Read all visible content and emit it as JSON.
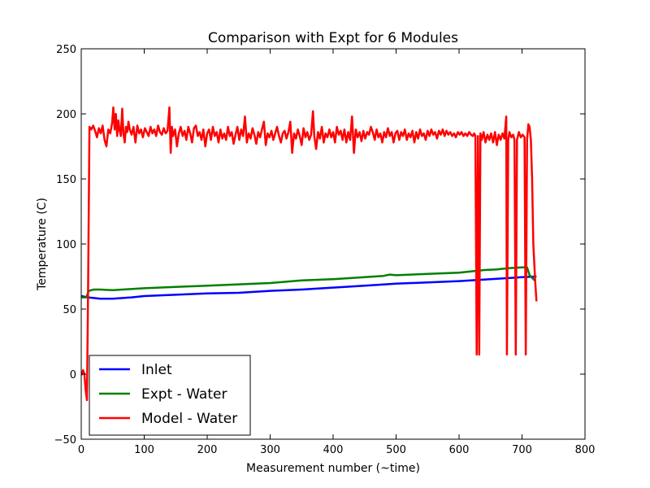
{
  "chart_data": {
    "type": "line",
    "title": "Comparison with Expt for 6 Modules",
    "xlabel": "Measurement number (~time)",
    "ylabel": "Temperature (C)",
    "xlim": [
      0,
      800
    ],
    "ylim": [
      -50,
      250
    ],
    "xticks": [
      0,
      100,
      200,
      300,
      400,
      500,
      600,
      700,
      800
    ],
    "yticks": [
      -50,
      0,
      50,
      100,
      150,
      200,
      250
    ],
    "grid": false,
    "legend_position": "lower-left",
    "series": [
      {
        "name": "Inlet",
        "color": "#0000ff",
        "points": [
          [
            0,
            60
          ],
          [
            10,
            59
          ],
          [
            20,
            58.5
          ],
          [
            30,
            58
          ],
          [
            50,
            58
          ],
          [
            80,
            59
          ],
          [
            100,
            60
          ],
          [
            150,
            61
          ],
          [
            200,
            62
          ],
          [
            250,
            62.5
          ],
          [
            300,
            64
          ],
          [
            350,
            65
          ],
          [
            400,
            66.5
          ],
          [
            450,
            68
          ],
          [
            500,
            69.5
          ],
          [
            550,
            70.5
          ],
          [
            600,
            71.5
          ],
          [
            650,
            73
          ],
          [
            700,
            74.5
          ],
          [
            723,
            75
          ]
        ]
      },
      {
        "name": "Expt - Water",
        "color": "#008000",
        "points": [
          [
            0,
            59
          ],
          [
            8,
            59
          ],
          [
            12,
            64
          ],
          [
            20,
            65
          ],
          [
            30,
            65
          ],
          [
            50,
            64.5
          ],
          [
            100,
            66
          ],
          [
            150,
            67
          ],
          [
            200,
            68
          ],
          [
            250,
            69
          ],
          [
            300,
            70
          ],
          [
            350,
            72
          ],
          [
            400,
            73
          ],
          [
            450,
            74.5
          ],
          [
            480,
            75.5
          ],
          [
            490,
            76.5
          ],
          [
            500,
            76
          ],
          [
            550,
            77
          ],
          [
            600,
            78
          ],
          [
            620,
            79
          ],
          [
            640,
            80
          ],
          [
            660,
            80.5
          ],
          [
            680,
            81.5
          ],
          [
            700,
            82
          ],
          [
            708,
            82
          ],
          [
            712,
            76
          ],
          [
            720,
            72
          ]
        ]
      },
      {
        "name": "Model - Water",
        "color": "#ff0000",
        "points": [
          [
            0,
            -1
          ],
          [
            3,
            3
          ],
          [
            5,
            0
          ],
          [
            7,
            -12
          ],
          [
            9,
            -20
          ],
          [
            11,
            70
          ],
          [
            13,
            190
          ],
          [
            16,
            188
          ],
          [
            19,
            191
          ],
          [
            22,
            187
          ],
          [
            25,
            182
          ],
          [
            28,
            189
          ],
          [
            31,
            185
          ],
          [
            34,
            191
          ],
          [
            37,
            180
          ],
          [
            40,
            175
          ],
          [
            43,
            188
          ],
          [
            46,
            185
          ],
          [
            49,
            193
          ],
          [
            51,
            205
          ],
          [
            53,
            188
          ],
          [
            55,
            200
          ],
          [
            57,
            183
          ],
          [
            59,
            195
          ],
          [
            61,
            187
          ],
          [
            63,
            183
          ],
          [
            65,
            204
          ],
          [
            67,
            185
          ],
          [
            69,
            178
          ],
          [
            71,
            190
          ],
          [
            73,
            186
          ],
          [
            75,
            194
          ],
          [
            77,
            188
          ],
          [
            80,
            184
          ],
          [
            83,
            190
          ],
          [
            86,
            178
          ],
          [
            89,
            191
          ],
          [
            92,
            185
          ],
          [
            95,
            188
          ],
          [
            98,
            182
          ],
          [
            101,
            189
          ],
          [
            104,
            186
          ],
          [
            107,
            183
          ],
          [
            110,
            190
          ],
          [
            113,
            185
          ],
          [
            116,
            188
          ],
          [
            119,
            183
          ],
          [
            122,
            191
          ],
          [
            125,
            186
          ],
          [
            128,
            184
          ],
          [
            131,
            189
          ],
          [
            134,
            185
          ],
          [
            137,
            187
          ],
          [
            140,
            205
          ],
          [
            142,
            170
          ],
          [
            144,
            190
          ],
          [
            146,
            183
          ],
          [
            149,
            188
          ],
          [
            152,
            175
          ],
          [
            155,
            185
          ],
          [
            158,
            190
          ],
          [
            161,
            183
          ],
          [
            164,
            187
          ],
          [
            167,
            180
          ],
          [
            170,
            190
          ],
          [
            173,
            185
          ],
          [
            176,
            178
          ],
          [
            179,
            189
          ],
          [
            182,
            191
          ],
          [
            185,
            183
          ],
          [
            188,
            186
          ],
          [
            191,
            180
          ],
          [
            194,
            188
          ],
          [
            197,
            175
          ],
          [
            200,
            185
          ],
          [
            203,
            188
          ],
          [
            206,
            180
          ],
          [
            209,
            190
          ],
          [
            212,
            183
          ],
          [
            215,
            186
          ],
          [
            218,
            178
          ],
          [
            221,
            188
          ],
          [
            224,
            181
          ],
          [
            227,
            185
          ],
          [
            230,
            180
          ],
          [
            233,
            190
          ],
          [
            236,
            183
          ],
          [
            239,
            186
          ],
          [
            242,
            177
          ],
          [
            245,
            184
          ],
          [
            248,
            190
          ],
          [
            251,
            180
          ],
          [
            254,
            188
          ],
          [
            257,
            183
          ],
          [
            260,
            198
          ],
          [
            263,
            178
          ],
          [
            266,
            185
          ],
          [
            269,
            181
          ],
          [
            272,
            189
          ],
          [
            275,
            184
          ],
          [
            278,
            177
          ],
          [
            281,
            186
          ],
          [
            284,
            182
          ],
          [
            287,
            188
          ],
          [
            290,
            194
          ],
          [
            293,
            176
          ],
          [
            296,
            185
          ],
          [
            299,
            182
          ],
          [
            302,
            187
          ],
          [
            305,
            180
          ],
          [
            308,
            185
          ],
          [
            311,
            190
          ],
          [
            314,
            183
          ],
          [
            317,
            178
          ],
          [
            320,
            185
          ],
          [
            323,
            187
          ],
          [
            326,
            181
          ],
          [
            329,
            186
          ],
          [
            332,
            194
          ],
          [
            335,
            170
          ],
          [
            338,
            185
          ],
          [
            341,
            181
          ],
          [
            344,
            188
          ],
          [
            347,
            183
          ],
          [
            350,
            176
          ],
          [
            353,
            189
          ],
          [
            356,
            182
          ],
          [
            359,
            186
          ],
          [
            362,
            180
          ],
          [
            365,
            184
          ],
          [
            368,
            202
          ],
          [
            370,
            183
          ],
          [
            373,
            173
          ],
          [
            376,
            186
          ],
          [
            379,
            181
          ],
          [
            382,
            190
          ],
          [
            385,
            178
          ],
          [
            388,
            185
          ],
          [
            391,
            182
          ],
          [
            394,
            188
          ],
          [
            397,
            182
          ],
          [
            400,
            186
          ],
          [
            403,
            178
          ],
          [
            406,
            190
          ],
          [
            409,
            184
          ],
          [
            412,
            187
          ],
          [
            415,
            180
          ],
          [
            418,
            188
          ],
          [
            421,
            178
          ],
          [
            424,
            186
          ],
          [
            427,
            180
          ],
          [
            430,
            198
          ],
          [
            433,
            170
          ],
          [
            436,
            188
          ],
          [
            439,
            182
          ],
          [
            442,
            186
          ],
          [
            445,
            179
          ],
          [
            448,
            187
          ],
          [
            451,
            181
          ],
          [
            454,
            186
          ],
          [
            457,
            184
          ],
          [
            460,
            190
          ],
          [
            463,
            186
          ],
          [
            466,
            180
          ],
          [
            469,
            188
          ],
          [
            472,
            182
          ],
          [
            475,
            185
          ],
          [
            478,
            178
          ],
          [
            481,
            186
          ],
          [
            484,
            182
          ],
          [
            487,
            189
          ],
          [
            490,
            183
          ],
          [
            493,
            186
          ],
          [
            496,
            178
          ],
          [
            499,
            185
          ],
          [
            502,
            187
          ],
          [
            505,
            180
          ],
          [
            508,
            186
          ],
          [
            511,
            183
          ],
          [
            514,
            188
          ],
          [
            517,
            180
          ],
          [
            520,
            185
          ],
          [
            523,
            182
          ],
          [
            526,
            187
          ],
          [
            529,
            178
          ],
          [
            532,
            186
          ],
          [
            535,
            181
          ],
          [
            538,
            188
          ],
          [
            541,
            183
          ],
          [
            544,
            185
          ],
          [
            547,
            180
          ],
          [
            550,
            187
          ],
          [
            553,
            183
          ],
          [
            556,
            188
          ],
          [
            559,
            184
          ],
          [
            562,
            186
          ],
          [
            565,
            181
          ],
          [
            568,
            187
          ],
          [
            571,
            184
          ],
          [
            574,
            188
          ],
          [
            577,
            183
          ],
          [
            580,
            187
          ],
          [
            583,
            184
          ],
          [
            586,
            186
          ],
          [
            589,
            183
          ],
          [
            592,
            185
          ],
          [
            595,
            182
          ],
          [
            598,
            186
          ],
          [
            601,
            184
          ],
          [
            604,
            186
          ],
          [
            607,
            183
          ],
          [
            610,
            185
          ],
          [
            613,
            183
          ],
          [
            616,
            186
          ],
          [
            619,
            184
          ],
          [
            622,
            183
          ],
          [
            624,
            185
          ],
          [
            626,
            183
          ],
          [
            628,
            15
          ],
          [
            630,
            183
          ],
          [
            632,
            15
          ],
          [
            634,
            185
          ],
          [
            636,
            180
          ],
          [
            639,
            186
          ],
          [
            642,
            178
          ],
          [
            645,
            184
          ],
          [
            648,
            180
          ],
          [
            651,
            185
          ],
          [
            654,
            178
          ],
          [
            657,
            186
          ],
          [
            660,
            176
          ],
          [
            663,
            184
          ],
          [
            666,
            180
          ],
          [
            669,
            185
          ],
          [
            672,
            181
          ],
          [
            675,
            198
          ],
          [
            676,
            15
          ],
          [
            678,
            180
          ],
          [
            680,
            186
          ],
          [
            683,
            182
          ],
          [
            686,
            184
          ],
          [
            688,
            180
          ],
          [
            690,
            15
          ],
          [
            692,
            180
          ],
          [
            695,
            186
          ],
          [
            698,
            182
          ],
          [
            701,
            184
          ],
          [
            704,
            182
          ],
          [
            706,
            15
          ],
          [
            708,
            180
          ],
          [
            710,
            192
          ],
          [
            712,
            190
          ],
          [
            714,
            180
          ],
          [
            716,
            150
          ],
          [
            718,
            100
          ],
          [
            721,
            70
          ],
          [
            723,
            56
          ]
        ]
      }
    ]
  }
}
